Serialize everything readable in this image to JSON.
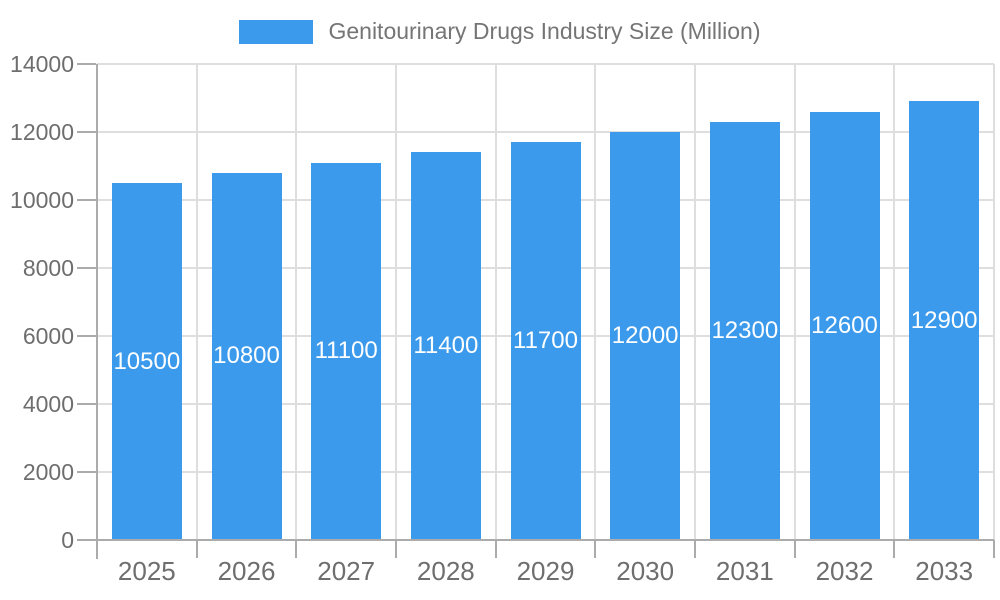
{
  "colors": {
    "bar": "#3B9AEC",
    "grid": "#DEDEDE",
    "axis": "#ABABAB",
    "axis_label": "#6E6E6E",
    "legend_text": "#757575",
    "bar_label": "#FFFFFF",
    "background": "#FFFFFF"
  },
  "chart_data": {
    "type": "bar",
    "categories": [
      "2025",
      "2026",
      "2027",
      "2028",
      "2029",
      "2030",
      "2031",
      "2032",
      "2033"
    ],
    "series": [
      {
        "name": "Genitourinary Drugs Industry Size (Million)",
        "values": [
          10500,
          10800,
          11100,
          11400,
          11700,
          12000,
          12300,
          12600,
          12900
        ]
      }
    ],
    "xlabel": "",
    "ylabel": "",
    "ylim": [
      0,
      14000
    ],
    "yticks": [
      0,
      2000,
      4000,
      6000,
      8000,
      10000,
      12000,
      14000
    ],
    "grid": "both",
    "legend_position": "top",
    "bar_labels_inside": true
  }
}
